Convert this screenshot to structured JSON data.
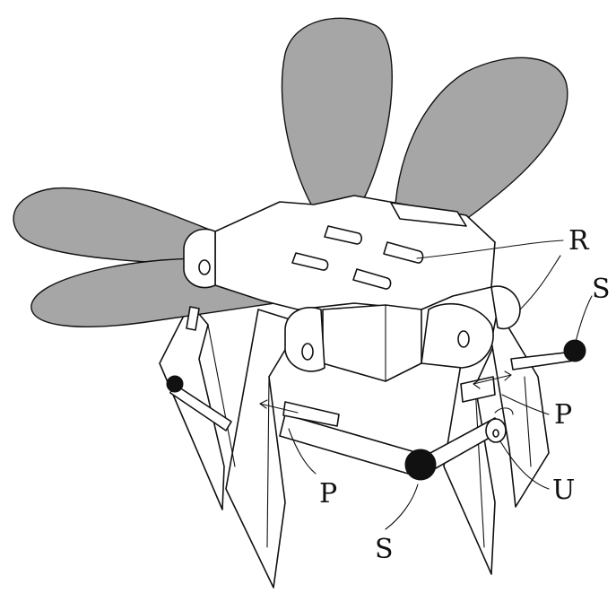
{
  "colors": {
    "wing_fill": "#a6a6a6",
    "line": "#111111",
    "ball": "#111111",
    "background": "#ffffff"
  },
  "labels": {
    "r": "R",
    "s_right": "S",
    "s_bottom": "S",
    "p_right": "P",
    "p_left": "P",
    "u": "U"
  }
}
